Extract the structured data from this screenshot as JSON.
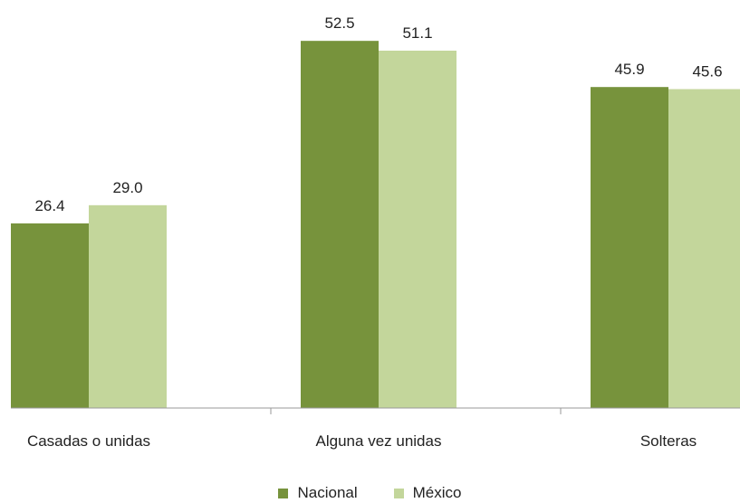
{
  "chart_data": {
    "type": "bar",
    "categories": [
      "Casadas o unidas",
      "Alguna vez unidas",
      "Solteras"
    ],
    "series": [
      {
        "name": "Nacional",
        "values": [
          26.4,
          52.5,
          45.9
        ],
        "value_labels": [
          "26.4",
          "52.5",
          "45.9"
        ],
        "color": "#77933c"
      },
      {
        "name": "México",
        "values": [
          29.0,
          51.1,
          45.6
        ],
        "value_labels": [
          "29.0",
          "51.1",
          "45.6"
        ],
        "color": "#c3d69b"
      }
    ],
    "ylim": [
      0,
      60
    ],
    "grid": false,
    "legend": "bottom"
  }
}
